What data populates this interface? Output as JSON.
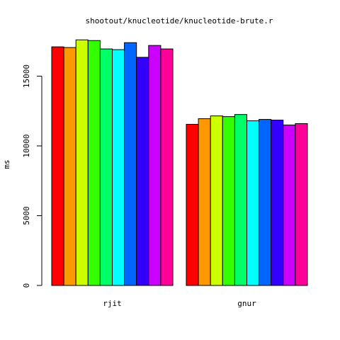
{
  "chart_data": {
    "type": "bar",
    "title": "shootout/knucleotide/knucleotide-brute.r",
    "xlabel": "",
    "ylabel": "ms",
    "ylim": [
      0,
      18000
    ],
    "yticks": [
      0,
      5000,
      10000,
      15000
    ],
    "categories": [
      "rjit",
      "gnur"
    ],
    "grid": false,
    "series": [
      {
        "color": "#FF0000",
        "values": [
          17100,
          11550
        ]
      },
      {
        "color": "#FF9900",
        "values": [
          17050,
          11950
        ]
      },
      {
        "color": "#CCFF00",
        "values": [
          17600,
          12150
        ]
      },
      {
        "color": "#33FF00",
        "values": [
          17550,
          12100
        ]
      },
      {
        "color": "#00FF66",
        "values": [
          16950,
          12250
        ]
      },
      {
        "color": "#00FFFF",
        "values": [
          16900,
          11800
        ]
      },
      {
        "color": "#0066FF",
        "values": [
          17400,
          11900
        ]
      },
      {
        "color": "#3300FF",
        "values": [
          16350,
          11850
        ]
      },
      {
        "color": "#CC00FF",
        "values": [
          17200,
          11500
        ]
      },
      {
        "color": "#FF0099",
        "values": [
          16950,
          11600
        ]
      }
    ]
  }
}
